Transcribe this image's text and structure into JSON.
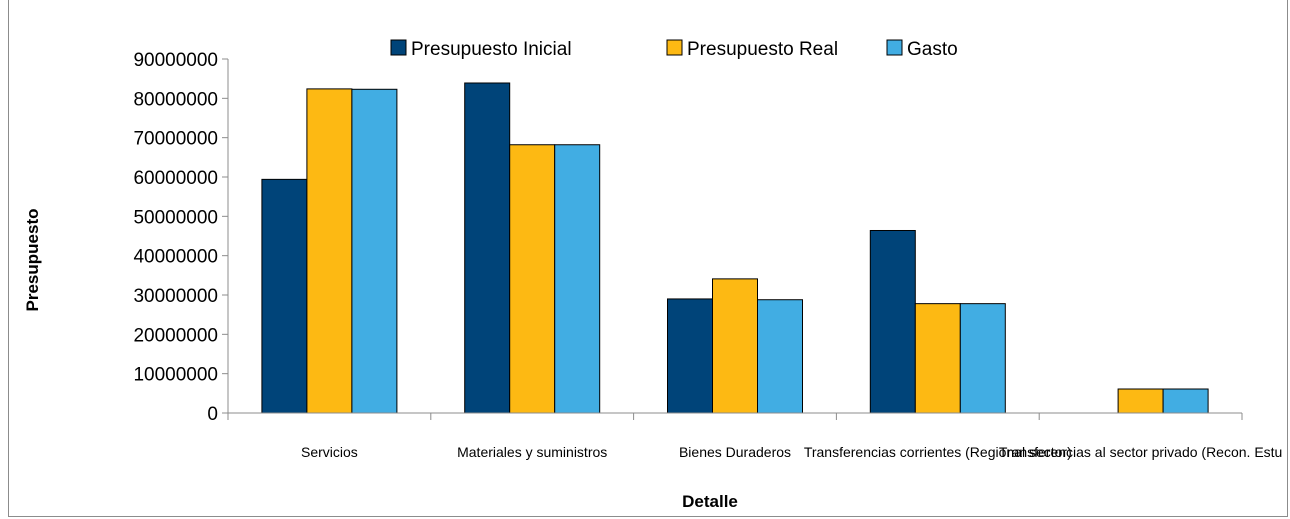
{
  "chart_data": {
    "type": "bar",
    "title": "",
    "xlabel": "Detalle",
    "ylabel": "Presupuesto",
    "ylim": [
      0,
      90000000
    ],
    "yticks": [
      0,
      10000000,
      20000000,
      30000000,
      40000000,
      50000000,
      60000000,
      70000000,
      80000000,
      90000000
    ],
    "grid": false,
    "legend": "top",
    "categories": [
      "Servicios",
      "Materiales y suministros",
      "Bienes Duraderos",
      "Transferencias corrientes (Regional sector)",
      "Transferencias al sector privado (Recon. Estu"
    ],
    "series": [
      {
        "name": "Presupuesto Inicial",
        "color": "#004479",
        "values": [
          59400000,
          83900000,
          29000000,
          46400000,
          0
        ]
      },
      {
        "name": "Presupuesto Real",
        "color": "#FDB913",
        "values": [
          82400000,
          68200000,
          34100000,
          27800000,
          6100000
        ]
      },
      {
        "name": "Gasto",
        "color": "#41ADE3",
        "values": [
          82300000,
          68200000,
          28800000,
          27800000,
          6100000
        ]
      }
    ]
  }
}
